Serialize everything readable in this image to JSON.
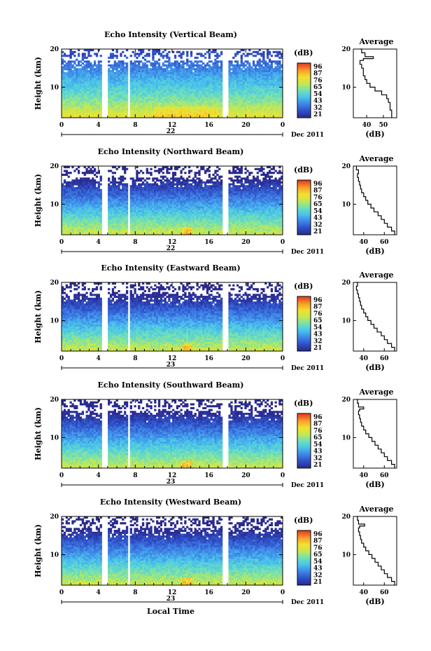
{
  "chart_data": {
    "type": "heatmap",
    "figure_xlabel": "Local Time",
    "colorbar": {
      "label": "(dB)",
      "ticks_panel1": [
        "96",
        "87",
        "76",
        "65",
        "54",
        "43",
        "32",
        "21"
      ],
      "ticks_panel2": [
        "96",
        "87",
        "76",
        "65",
        "54",
        "43",
        "32",
        "21"
      ],
      "ticks_panel3": [
        "96",
        "87",
        "76",
        "65",
        "54",
        "43",
        "32",
        "21"
      ],
      "ticks_panel4": [
        "96",
        "87",
        "76",
        "65",
        "54",
        "43",
        "32",
        "21"
      ],
      "ticks_panel5": [
        "96",
        "87",
        "76",
        "65",
        "54",
        "43",
        "32",
        "21"
      ],
      "colors": [
        "#2b2a8f",
        "#2f50c8",
        "#3f86e8",
        "#49c3ec",
        "#6fe0b8",
        "#c4e850",
        "#f4e030",
        "#f6a02c",
        "#e8401f"
      ]
    },
    "x_ticks": [
      "0",
      "4",
      "8",
      "12",
      "16",
      "20",
      "0"
    ],
    "xlim": [
      0,
      24
    ],
    "y_ticks": [
      "20",
      "10"
    ],
    "ylim": [
      2,
      20
    ],
    "date_marker": "22",
    "date_label": "Dec 2011",
    "data_gaps_hours": [
      [
        4.45,
        4.95
      ],
      [
        5.35,
        5.55
      ],
      [
        7.15,
        7.45
      ],
      [
        17.5,
        18.0
      ]
    ],
    "heatmap_ylabel": "Height (km)",
    "average_title": "Average",
    "average_xlabel": "(dB)",
    "panels": [
      {
        "title": "Echo Intensity (Vertical Beam)",
        "date_marker": "22",
        "avg_x_ticks": [
          "40",
          "50"
        ],
        "avg_xlim": [
          32,
          58
        ],
        "avg_profile": {
          "height_km": [
            2,
            3,
            4,
            5,
            6,
            7,
            8,
            9,
            10,
            11,
            12,
            13,
            14,
            15,
            16,
            17,
            17.5,
            18,
            19,
            20
          ],
          "db": [
            55,
            55,
            54,
            54,
            53,
            52,
            49,
            45,
            42,
            40,
            39,
            38,
            38,
            37,
            36,
            38,
            44,
            39,
            37,
            36
          ]
        }
      },
      {
        "title": "Echo Intensity (Northward Beam)",
        "date_marker": "22",
        "avg_x_ticks": [
          "40",
          "60"
        ],
        "avg_xlim": [
          30,
          72
        ],
        "avg_profile": {
          "height_km": [
            2,
            3,
            4,
            5,
            6,
            7,
            8,
            9,
            10,
            11,
            12,
            13,
            14,
            15,
            16,
            17,
            18,
            19,
            20
          ],
          "db": [
            70,
            67,
            63,
            60,
            57,
            54,
            50,
            47,
            44,
            42,
            40,
            38,
            37,
            36,
            35,
            34,
            35,
            33,
            33
          ]
        }
      },
      {
        "title": "Echo Intensity (Eastward Beam)",
        "date_marker": "23",
        "avg_x_ticks": [
          "40",
          "60"
        ],
        "avg_xlim": [
          30,
          72
        ],
        "avg_profile": {
          "height_km": [
            2,
            3,
            4,
            5,
            6,
            7,
            8,
            9,
            10,
            11,
            12,
            13,
            14,
            15,
            16,
            17,
            18,
            19,
            20
          ],
          "db": [
            70,
            67,
            63,
            60,
            57,
            53,
            50,
            47,
            44,
            42,
            40,
            38,
            37,
            36,
            35,
            34,
            33,
            34,
            33
          ]
        }
      },
      {
        "title": "Echo Intensity (Southward Beam)",
        "date_marker": "23",
        "avg_x_ticks": [
          "40",
          "60"
        ],
        "avg_xlim": [
          30,
          72
        ],
        "avg_profile": {
          "height_km": [
            2,
            3,
            4,
            5,
            6,
            7,
            8,
            9,
            10,
            11,
            12,
            13,
            14,
            15,
            16,
            17,
            17.5,
            18,
            19,
            20
          ],
          "db": [
            70,
            67,
            63,
            60,
            57,
            54,
            51,
            48,
            45,
            42,
            40,
            38,
            37,
            36,
            35,
            36,
            40,
            35,
            34,
            33
          ]
        }
      },
      {
        "title": "Echo Intensity (Westward Beam)",
        "date_marker": "23",
        "avg_x_ticks": [
          "40",
          "60"
        ],
        "avg_xlim": [
          30,
          72
        ],
        "avg_profile": {
          "height_km": [
            2,
            3,
            4,
            5,
            6,
            7,
            8,
            9,
            10,
            11,
            12,
            13,
            14,
            15,
            16,
            17,
            17.5,
            18,
            19,
            20
          ],
          "db": [
            70,
            67,
            63,
            60,
            57,
            54,
            51,
            48,
            45,
            42,
            40,
            38,
            37,
            36,
            35,
            36,
            41,
            35,
            34,
            33
          ]
        }
      }
    ]
  }
}
